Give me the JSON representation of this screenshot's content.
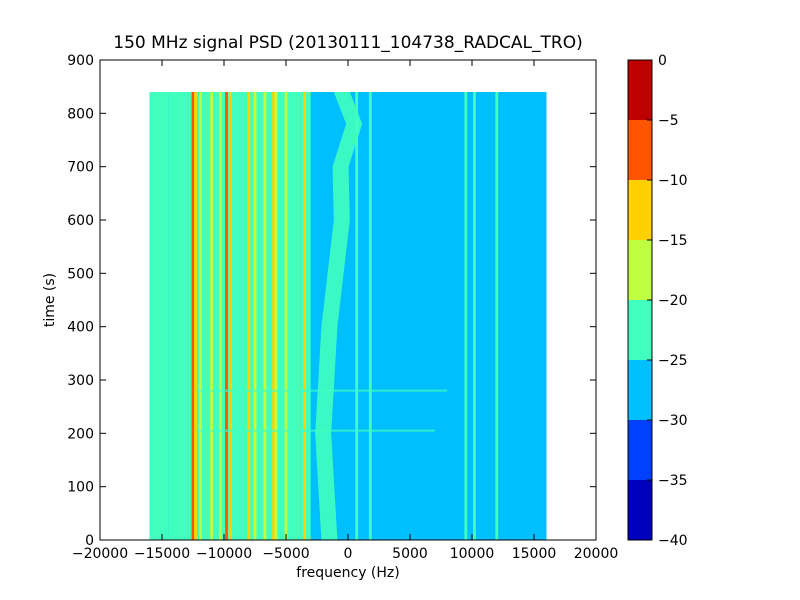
{
  "chart_data": {
    "type": "heatmap",
    "title": "150 MHz signal PSD (20130111_104738_RADCAL_TRO)",
    "xlabel": "frequency (Hz)",
    "ylabel": "time (s)",
    "xlim": [
      -20000,
      20000
    ],
    "ylim": [
      0,
      900
    ],
    "x_ticks": [
      -20000,
      -15000,
      -10000,
      -5000,
      0,
      5000,
      10000,
      15000,
      20000
    ],
    "x_tick_labels": [
      "−20000",
      "−15000",
      "−10000",
      "−5000",
      "0",
      "5000",
      "10000",
      "15000",
      "20000"
    ],
    "y_ticks": [
      0,
      100,
      200,
      300,
      400,
      500,
      600,
      700,
      800,
      900
    ],
    "y_tick_labels": [
      "0",
      "100",
      "200",
      "300",
      "400",
      "500",
      "600",
      "700",
      "800",
      "900"
    ],
    "data_extent": {
      "x": [
        -16000,
        16000
      ],
      "y": [
        0,
        840
      ]
    },
    "colorbar": {
      "range": [
        -40,
        0
      ],
      "ticks": [
        0,
        -5,
        -10,
        -15,
        -20,
        -25,
        -30,
        -35,
        -40
      ],
      "tick_labels": [
        "0",
        "−5",
        "−10",
        "−15",
        "−20",
        "−25",
        "−30",
        "−35",
        "−40"
      ],
      "bands": [
        {
          "from": -40,
          "to": -35,
          "color": "#0000bf"
        },
        {
          "from": -35,
          "to": -30,
          "color": "#0040ff"
        },
        {
          "from": -30,
          "to": -25,
          "color": "#00bfff"
        },
        {
          "from": -25,
          "to": -20,
          "color": "#40ffbf"
        },
        {
          "from": -20,
          "to": -15,
          "color": "#bfff40"
        },
        {
          "from": -15,
          "to": -10,
          "color": "#ffd100"
        },
        {
          "from": -10,
          "to": -5,
          "color": "#ff5400"
        },
        {
          "from": -5,
          "to": 0,
          "color": "#bf0000"
        }
      ]
    },
    "background_level": -27,
    "regions": [
      {
        "x": [
          -16000,
          -14500
        ],
        "level": -22
      },
      {
        "x": [
          14000,
          16000
        ],
        "level": -22
      },
      {
        "x": [
          -14500,
          -3000
        ],
        "level": -24
      },
      {
        "x": [
          -3000,
          0
        ],
        "level": -27
      },
      {
        "x": [
          0,
          2000
        ],
        "level": -26
      },
      {
        "x": [
          2000,
          16000
        ],
        "level": -27
      }
    ],
    "vertical_lines": [
      {
        "x": -12500,
        "level": -8
      },
      {
        "x": -12300,
        "level": -14
      },
      {
        "x": -11900,
        "level": -17
      },
      {
        "x": -11000,
        "level": -15
      },
      {
        "x": -10300,
        "level": -17
      },
      {
        "x": -9800,
        "level": -6
      },
      {
        "x": -9500,
        "level": -14
      },
      {
        "x": -8000,
        "level": -12
      },
      {
        "x": -7500,
        "level": -16
      },
      {
        "x": -6700,
        "level": -17
      },
      {
        "x": -6000,
        "level": -11
      },
      {
        "x": -5800,
        "level": -17
      },
      {
        "x": -5000,
        "level": -18
      },
      {
        "x": -3500,
        "level": -12
      },
      {
        "x": 700,
        "level": -22
      },
      {
        "x": 1800,
        "level": -22
      },
      {
        "x": 9500,
        "level": -22
      },
      {
        "x": 10200,
        "level": -22
      },
      {
        "x": 12000,
        "level": -23
      }
    ],
    "drift_feature": {
      "level": -22,
      "points": [
        [
          0,
          -1500
        ],
        [
          200,
          -2000
        ],
        [
          400,
          -1500
        ],
        [
          600,
          -500
        ],
        [
          700,
          -600
        ],
        [
          780,
          500
        ],
        [
          840,
          -500
        ]
      ]
    },
    "horizontal_lines": [
      {
        "y": 280,
        "x": [
          -12000,
          8000
        ],
        "level": -22
      },
      {
        "y": 205,
        "x": [
          -12000,
          7000
        ],
        "level": -22
      }
    ]
  }
}
